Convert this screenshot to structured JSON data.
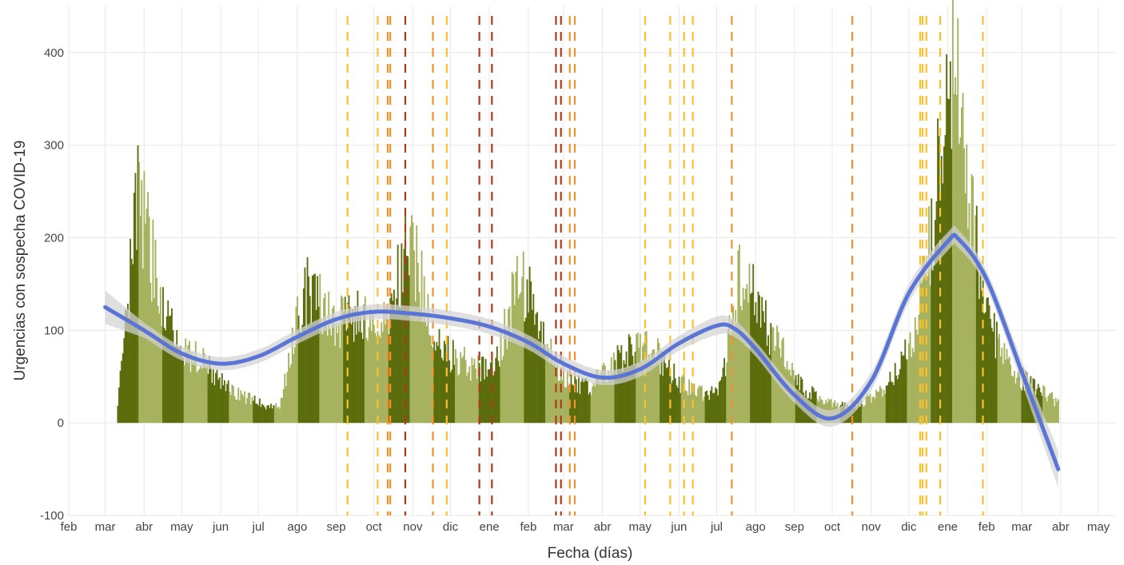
{
  "chart_data": {
    "type": "bar",
    "xlabel": "Fecha (días)",
    "ylabel": "Urgencias con sospecha COVID-19",
    "ylim": [
      -100,
      450
    ],
    "xlim": [
      "2020-02-01",
      "2022-05-15"
    ],
    "y_ticks": [
      -100,
      0,
      100,
      200,
      300,
      400
    ],
    "x_ticks": [
      {
        "date": "2020-02-01",
        "label": "feb"
      },
      {
        "date": "2020-03-01",
        "label": "mar"
      },
      {
        "date": "2020-04-01",
        "label": "abr"
      },
      {
        "date": "2020-05-01",
        "label": "may"
      },
      {
        "date": "2020-06-01",
        "label": "jun"
      },
      {
        "date": "2020-07-01",
        "label": "jul"
      },
      {
        "date": "2020-08-01",
        "label": "ago"
      },
      {
        "date": "2020-09-01",
        "label": "sep"
      },
      {
        "date": "2020-10-01",
        "label": "oct"
      },
      {
        "date": "2020-11-01",
        "label": "nov"
      },
      {
        "date": "2020-12-01",
        "label": "dic"
      },
      {
        "date": "2021-01-01",
        "label": "ene"
      },
      {
        "date": "2021-02-01",
        "label": "feb"
      },
      {
        "date": "2021-03-01",
        "label": "mar"
      },
      {
        "date": "2021-04-01",
        "label": "abr"
      },
      {
        "date": "2021-05-01",
        "label": "may"
      },
      {
        "date": "2021-06-01",
        "label": "jun"
      },
      {
        "date": "2021-07-01",
        "label": "jul"
      },
      {
        "date": "2021-08-01",
        "label": "ago"
      },
      {
        "date": "2021-09-01",
        "label": "sep"
      },
      {
        "date": "2021-10-01",
        "label": "oct"
      },
      {
        "date": "2021-11-01",
        "label": "nov"
      },
      {
        "date": "2021-12-01",
        "label": "dic"
      },
      {
        "date": "2022-01-01",
        "label": "ene"
      },
      {
        "date": "2022-02-01",
        "label": "feb"
      },
      {
        "date": "2022-03-01",
        "label": "mar"
      },
      {
        "date": "2022-04-01",
        "label": "abr"
      },
      {
        "date": "2022-05-01",
        "label": "may"
      }
    ],
    "daily_urgencias": {
      "start_date": "2020-03-10",
      "end_date": "2022-03-30",
      "anchors": [
        [
          "2020-03-10",
          0
        ],
        [
          "2020-03-13",
          45
        ],
        [
          "2020-03-18",
          110
        ],
        [
          "2020-03-22",
          175
        ],
        [
          "2020-03-27",
          235
        ],
        [
          "2020-04-01",
          215
        ],
        [
          "2020-04-08",
          175
        ],
        [
          "2020-04-16",
          135
        ],
        [
          "2020-04-25",
          95
        ],
        [
          "2020-05-05",
          75
        ],
        [
          "2020-05-15",
          68
        ],
        [
          "2020-05-25",
          55
        ],
        [
          "2020-06-05",
          42
        ],
        [
          "2020-06-20",
          28
        ],
        [
          "2020-07-05",
          20
        ],
        [
          "2020-07-18",
          18
        ],
        [
          "2020-07-25",
          60
        ],
        [
          "2020-08-01",
          120
        ],
        [
          "2020-08-10",
          145
        ],
        [
          "2020-08-18",
          130
        ],
        [
          "2020-08-28",
          110
        ],
        [
          "2020-09-10",
          110
        ],
        [
          "2020-09-20",
          120
        ],
        [
          "2020-09-30",
          95
        ],
        [
          "2020-10-08",
          105
        ],
        [
          "2020-10-18",
          140
        ],
        [
          "2020-10-26",
          185
        ],
        [
          "2020-11-01",
          190
        ],
        [
          "2020-11-06",
          160
        ],
        [
          "2020-11-14",
          110
        ],
        [
          "2020-11-22",
          80
        ],
        [
          "2020-12-05",
          72
        ],
        [
          "2020-12-15",
          65
        ],
        [
          "2020-12-25",
          55
        ],
        [
          "2021-01-05",
          65
        ],
        [
          "2021-01-15",
          110
        ],
        [
          "2021-01-22",
          150
        ],
        [
          "2021-01-29",
          150
        ],
        [
          "2021-02-06",
          115
        ],
        [
          "2021-02-15",
          80
        ],
        [
          "2021-02-25",
          60
        ],
        [
          "2021-03-08",
          45
        ],
        [
          "2021-03-20",
          38
        ],
        [
          "2021-04-01",
          50
        ],
        [
          "2021-04-10",
          65
        ],
        [
          "2021-04-22",
          78
        ],
        [
          "2021-05-02",
          82
        ],
        [
          "2021-05-12",
          80
        ],
        [
          "2021-05-22",
          60
        ],
        [
          "2021-06-02",
          45
        ],
        [
          "2021-06-12",
          38
        ],
        [
          "2021-06-25",
          30
        ],
        [
          "2021-07-05",
          45
        ],
        [
          "2021-07-12",
          100
        ],
        [
          "2021-07-18",
          155
        ],
        [
          "2021-07-24",
          160
        ],
        [
          "2021-07-30",
          140
        ],
        [
          "2021-08-08",
          110
        ],
        [
          "2021-08-18",
          85
        ],
        [
          "2021-08-30",
          55
        ],
        [
          "2021-09-10",
          35
        ],
        [
          "2021-09-22",
          25
        ],
        [
          "2021-10-05",
          18
        ],
        [
          "2021-10-15",
          18
        ],
        [
          "2021-10-25",
          22
        ],
        [
          "2021-11-05",
          30
        ],
        [
          "2021-11-15",
          45
        ],
        [
          "2021-11-25",
          65
        ],
        [
          "2021-12-05",
          100
        ],
        [
          "2021-12-12",
          145
        ],
        [
          "2021-12-20",
          210
        ],
        [
          "2021-12-26",
          310
        ],
        [
          "2022-01-01",
          380
        ],
        [
          "2022-01-06",
          370
        ],
        [
          "2022-01-12",
          320
        ],
        [
          "2022-01-18",
          260
        ],
        [
          "2022-01-24",
          200
        ],
        [
          "2022-01-30",
          140
        ],
        [
          "2022-02-05",
          105
        ],
        [
          "2022-02-14",
          80
        ],
        [
          "2022-02-22",
          60
        ],
        [
          "2022-03-03",
          45
        ],
        [
          "2022-03-12",
          38
        ],
        [
          "2022-03-20",
          30
        ],
        [
          "2022-03-30",
          22
        ]
      ]
    },
    "smooth_trend": {
      "points": [
        [
          "2020-03-01",
          125
        ],
        [
          "2020-04-01",
          100
        ],
        [
          "2020-05-01",
          75
        ],
        [
          "2020-06-01",
          64
        ],
        [
          "2020-07-01",
          72
        ],
        [
          "2020-08-01",
          93
        ],
        [
          "2020-09-01",
          112
        ],
        [
          "2020-10-01",
          120
        ],
        [
          "2020-11-01",
          118
        ],
        [
          "2020-12-01",
          113
        ],
        [
          "2021-01-01",
          104
        ],
        [
          "2021-02-01",
          87
        ],
        [
          "2021-03-01",
          64
        ],
        [
          "2021-04-01",
          49
        ],
        [
          "2021-05-01",
          58
        ],
        [
          "2021-06-01",
          86
        ],
        [
          "2021-07-01",
          105
        ],
        [
          "2021-07-15",
          102
        ],
        [
          "2021-08-01",
          80
        ],
        [
          "2021-09-01",
          30
        ],
        [
          "2021-10-01",
          5
        ],
        [
          "2021-11-01",
          45
        ],
        [
          "2021-12-01",
          140
        ],
        [
          "2022-01-01",
          196
        ],
        [
          "2022-01-10",
          198
        ],
        [
          "2022-02-01",
          155
        ],
        [
          "2022-03-01",
          55
        ],
        [
          "2022-03-30",
          -50
        ]
      ],
      "ci_halfwidth": [
        [
          "2020-03-01",
          18
        ],
        [
          "2020-04-01",
          8
        ],
        [
          "2020-06-01",
          7
        ],
        [
          "2020-09-01",
          8
        ],
        [
          "2021-01-01",
          8
        ],
        [
          "2021-06-01",
          8
        ],
        [
          "2021-07-01",
          10
        ],
        [
          "2021-08-01",
          8
        ],
        [
          "2021-10-01",
          9
        ],
        [
          "2021-12-01",
          10
        ],
        [
          "2022-01-01",
          10
        ],
        [
          "2022-02-01",
          9
        ],
        [
          "2022-03-01",
          12
        ],
        [
          "2022-03-30",
          20
        ]
      ]
    },
    "event_lines": [
      {
        "date": "2020-09-10",
        "level": 1
      },
      {
        "date": "2020-10-04",
        "level": 1
      },
      {
        "date": "2020-10-12",
        "level": 2
      },
      {
        "date": "2020-10-14",
        "level": 2
      },
      {
        "date": "2020-10-26",
        "level": 3
      },
      {
        "date": "2020-11-17",
        "level": 2
      },
      {
        "date": "2020-11-28",
        "level": 1
      },
      {
        "date": "2020-12-24",
        "level": 3
      },
      {
        "date": "2021-01-03",
        "level": 3
      },
      {
        "date": "2021-02-23",
        "level": 3
      },
      {
        "date": "2021-02-27",
        "level": 3
      },
      {
        "date": "2021-03-06",
        "level": 2
      },
      {
        "date": "2021-03-10",
        "level": 2
      },
      {
        "date": "2021-05-05",
        "level": 1
      },
      {
        "date": "2021-05-25",
        "level": 1
      },
      {
        "date": "2021-06-05",
        "level": 1
      },
      {
        "date": "2021-06-12",
        "level": 1
      },
      {
        "date": "2021-07-13",
        "level": 2
      },
      {
        "date": "2021-10-17",
        "level": 2
      },
      {
        "date": "2021-12-10",
        "level": 1
      },
      {
        "date": "2021-12-12",
        "level": 1
      },
      {
        "date": "2021-12-15",
        "level": 1
      },
      {
        "date": "2021-12-26",
        "level": 1
      },
      {
        "date": "2022-01-29",
        "level": 1
      }
    ],
    "colors": {
      "bar_light": "#a6b25e",
      "bar_dark": "#5b6d0c",
      "trend_line": "#5b75d6",
      "ci_band": "#d3d3d3",
      "grid": "#e8e8e8",
      "event_level_1": "#fbc02d",
      "event_level_2": "#f5902f",
      "event_level_3": "#b23a1b"
    },
    "grid": true,
    "legend": "none"
  }
}
